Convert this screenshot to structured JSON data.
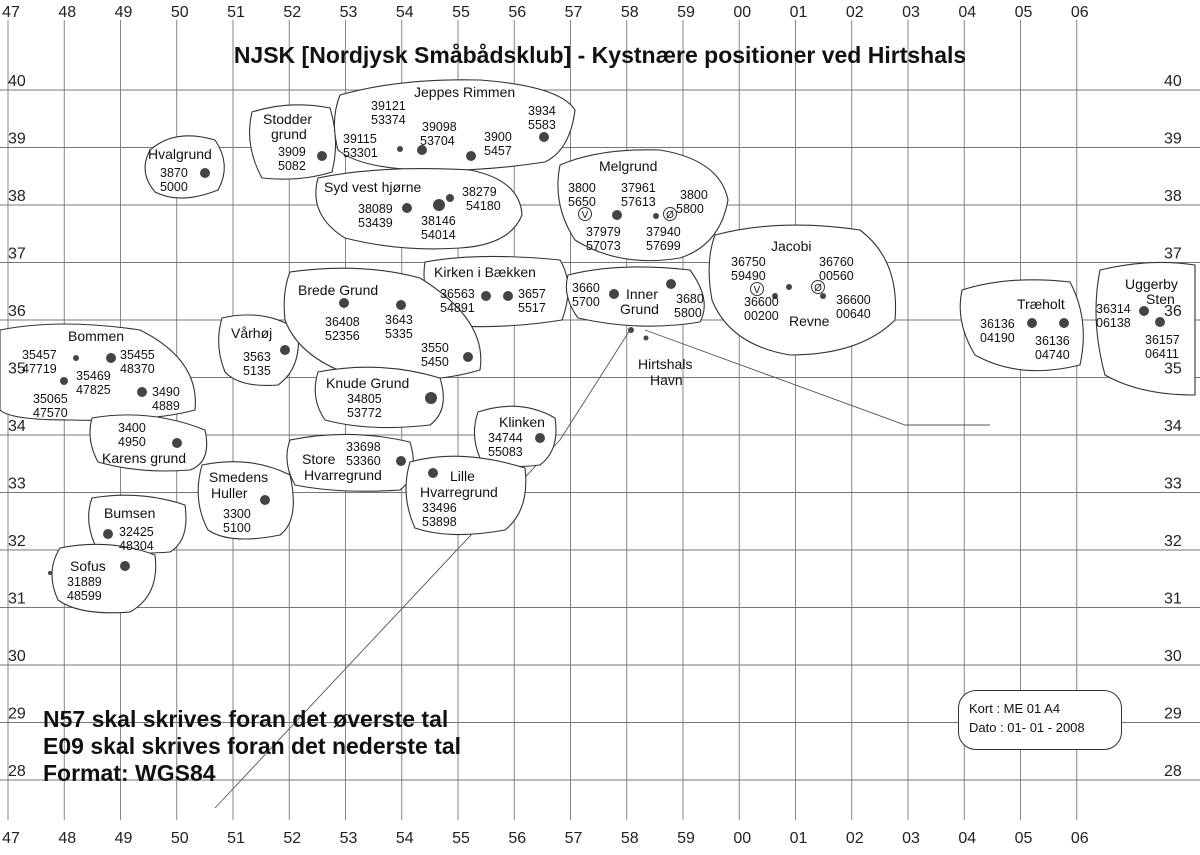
{
  "title": "NJSK [Nordjysk Småbådsklub] - Kystnære positioner ved Hirtshals",
  "axes": {
    "top_bottom": [
      "47",
      "48",
      "49",
      "50",
      "51",
      "52",
      "53",
      "54",
      "55",
      "56",
      "57",
      "58",
      "59",
      "00",
      "01",
      "02",
      "03",
      "04",
      "05",
      "06"
    ],
    "left_right": [
      "40",
      "39",
      "38",
      "37",
      "36",
      "35",
      "34",
      "33",
      "32",
      "31",
      "30",
      "29",
      "28"
    ]
  },
  "notes": [
    "N57 skal skrives foran det øverste tal",
    "E09 skal skrives foran det nederste tal",
    "Format: WGS84"
  ],
  "card": {
    "kort": "Kort : ME 01 A4",
    "dato": "Dato : 01- 01 - 2008"
  },
  "areas": [
    {
      "name": [
        "Hvalgrund"
      ],
      "numbers": [
        "3870",
        "5000"
      ]
    },
    {
      "name": [
        "Stodder",
        "grund"
      ],
      "numbers": [
        "3909",
        "5082"
      ]
    },
    {
      "name": [
        "Jeppes Rimmen"
      ],
      "numbers": [
        "39121",
        "53374",
        "39115",
        "53301",
        "39098",
        "53704",
        "3900",
        "5457",
        "3934",
        "5583"
      ]
    },
    {
      "name": [
        "Syd vest hjørne"
      ],
      "numbers": [
        "38279",
        "54180",
        "38089",
        "53439",
        "38146",
        "54014"
      ]
    },
    {
      "name": [
        "Melgrund"
      ],
      "numbers": [
        "3800",
        "5650",
        "37961",
        "57613",
        "3800",
        "5800",
        "37979",
        "57073",
        "37940",
        "57699"
      ],
      "marks": [
        "V",
        "Ø"
      ]
    },
    {
      "name": [
        "Kirken i Bækken"
      ],
      "numbers": [
        "36563",
        "54891",
        "3657",
        "5517"
      ]
    },
    {
      "name": [
        "Inner",
        "Grund"
      ],
      "numbers": [
        "3660",
        "5700",
        "3680",
        "5800"
      ]
    },
    {
      "name": [
        "Jacobi",
        "Revne"
      ],
      "numbers": [
        "36750",
        "59490",
        "36760",
        "00560",
        "36600",
        "00200",
        "36600",
        "00640"
      ],
      "marks": [
        "V",
        "Ø"
      ]
    },
    {
      "name": [
        "Træholt"
      ],
      "numbers": [
        "36136",
        "04190",
        "36136",
        "04740"
      ]
    },
    {
      "name": [
        "Uggerby",
        "Sten"
      ],
      "numbers": [
        "36314",
        "06138",
        "36157",
        "06411"
      ]
    },
    {
      "name": [
        "Bommen"
      ],
      "numbers": [
        "35457",
        "47719",
        "35455",
        "48370",
        "35469",
        "47825",
        "35065",
        "47570",
        "3490",
        "4889"
      ]
    },
    {
      "name": [
        "Vårhøj"
      ],
      "numbers": [
        "3563",
        "5135"
      ]
    },
    {
      "name": [
        "Brede Grund"
      ],
      "numbers": [
        "36408",
        "52356",
        "3643",
        "5335",
        "3550",
        "5450"
      ]
    },
    {
      "name": [
        "Knude Grund"
      ],
      "numbers": [
        "34805",
        "53772"
      ]
    },
    {
      "name": [
        "Karens grund"
      ],
      "numbers": [
        "3400",
        "4950"
      ]
    },
    {
      "name": [
        "Store",
        "Hvarregrund"
      ],
      "numbers": [
        "33698",
        "53360"
      ]
    },
    {
      "name": [
        "Klinken"
      ],
      "numbers": [
        "34744",
        "55083"
      ]
    },
    {
      "name": [
        "Lille",
        "Hvarregrund"
      ],
      "numbers": [
        "33496",
        "53898"
      ]
    },
    {
      "name": [
        "Smedens",
        "Huller"
      ],
      "numbers": [
        "3300",
        "5100"
      ]
    },
    {
      "name": [
        "Bumsen"
      ],
      "numbers": [
        "32425",
        "48304"
      ]
    },
    {
      "name": [
        "Sofus"
      ],
      "numbers": [
        "31889",
        "48599"
      ]
    }
  ],
  "places": {
    "hirtshals": [
      "Hirtshals",
      "Havn"
    ]
  }
}
